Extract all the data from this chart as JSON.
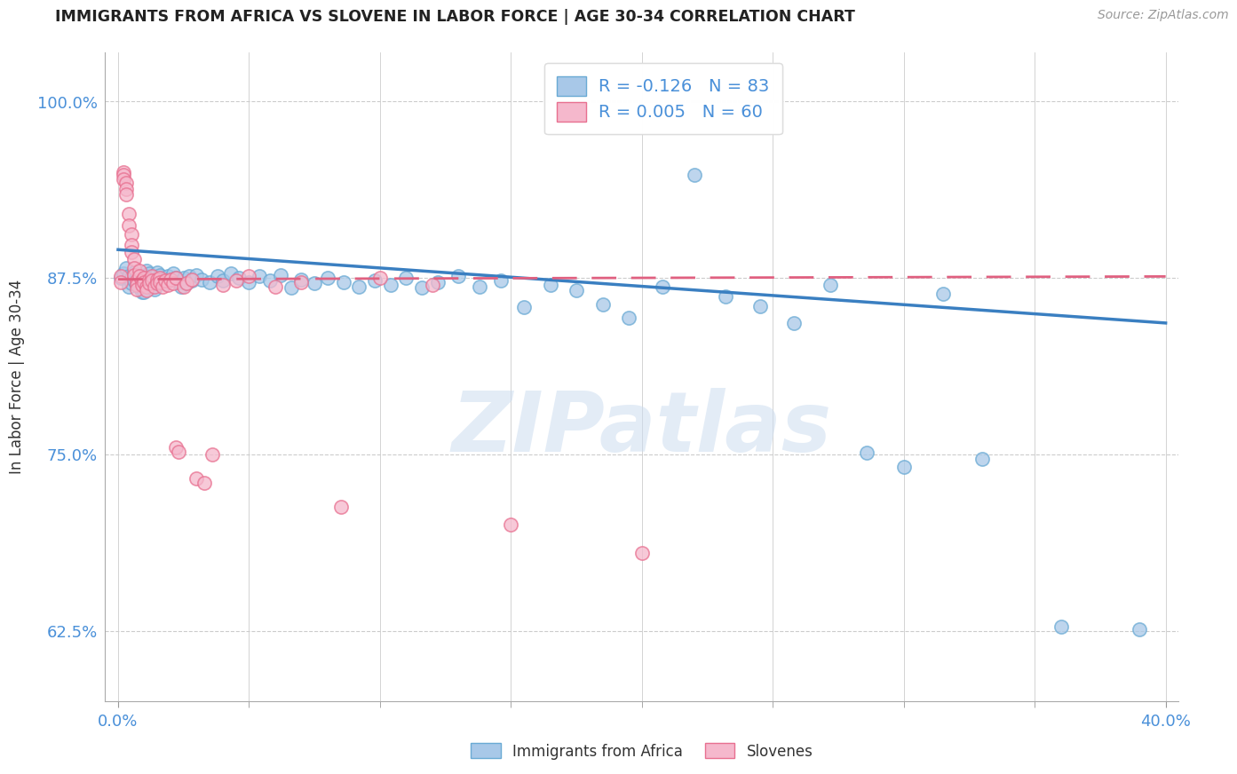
{
  "title": "IMMIGRANTS FROM AFRICA VS SLOVENE IN LABOR FORCE | AGE 30-34 CORRELATION CHART",
  "source": "Source: ZipAtlas.com",
  "ylabel": "In Labor Force | Age 30-34",
  "legend_inside_labels": [
    "R = -0.126   N = 83",
    "R = 0.005   N = 60"
  ],
  "legend_below": [
    "Immigrants from Africa",
    "Slovenes"
  ],
  "blue_color": "#a8c8e8",
  "blue_edge": "#6aaad4",
  "pink_color": "#f5b8cc",
  "pink_edge": "#e87090",
  "blue_line_color": "#3a7fc1",
  "pink_line_color": "#e06080",
  "watermark_text": "ZIPatlas",
  "blue_scatter": [
    [
      0.001,
      0.875
    ],
    [
      0.002,
      0.878
    ],
    [
      0.003,
      0.882
    ],
    [
      0.004,
      0.876
    ],
    [
      0.004,
      0.869
    ],
    [
      0.005,
      0.875
    ],
    [
      0.005,
      0.871
    ],
    [
      0.006,
      0.879
    ],
    [
      0.006,
      0.873
    ],
    [
      0.007,
      0.877
    ],
    [
      0.007,
      0.87
    ],
    [
      0.008,
      0.875
    ],
    [
      0.008,
      0.868
    ],
    [
      0.009,
      0.873
    ],
    [
      0.009,
      0.865
    ],
    [
      0.01,
      0.877
    ],
    [
      0.01,
      0.871
    ],
    [
      0.01,
      0.865
    ],
    [
      0.011,
      0.88
    ],
    [
      0.011,
      0.875
    ],
    [
      0.012,
      0.878
    ],
    [
      0.012,
      0.871
    ],
    [
      0.013,
      0.875
    ],
    [
      0.013,
      0.869
    ],
    [
      0.014,
      0.873
    ],
    [
      0.014,
      0.867
    ],
    [
      0.015,
      0.879
    ],
    [
      0.015,
      0.873
    ],
    [
      0.016,
      0.877
    ],
    [
      0.017,
      0.874
    ],
    [
      0.018,
      0.871
    ],
    [
      0.019,
      0.876
    ],
    [
      0.02,
      0.873
    ],
    [
      0.021,
      0.878
    ],
    [
      0.022,
      0.875
    ],
    [
      0.023,
      0.872
    ],
    [
      0.024,
      0.869
    ],
    [
      0.025,
      0.875
    ],
    [
      0.026,
      0.871
    ],
    [
      0.027,
      0.876
    ],
    [
      0.028,
      0.873
    ],
    [
      0.03,
      0.877
    ],
    [
      0.032,
      0.874
    ],
    [
      0.035,
      0.872
    ],
    [
      0.038,
      0.876
    ],
    [
      0.04,
      0.873
    ],
    [
      0.043,
      0.878
    ],
    [
      0.046,
      0.875
    ],
    [
      0.05,
      0.872
    ],
    [
      0.054,
      0.876
    ],
    [
      0.058,
      0.873
    ],
    [
      0.062,
      0.877
    ],
    [
      0.066,
      0.868
    ],
    [
      0.07,
      0.874
    ],
    [
      0.075,
      0.871
    ],
    [
      0.08,
      0.875
    ],
    [
      0.086,
      0.872
    ],
    [
      0.092,
      0.869
    ],
    [
      0.098,
      0.873
    ],
    [
      0.104,
      0.87
    ],
    [
      0.11,
      0.875
    ],
    [
      0.116,
      0.868
    ],
    [
      0.122,
      0.872
    ],
    [
      0.13,
      0.876
    ],
    [
      0.138,
      0.869
    ],
    [
      0.146,
      0.873
    ],
    [
      0.155,
      0.854
    ],
    [
      0.165,
      0.87
    ],
    [
      0.175,
      0.866
    ],
    [
      0.185,
      0.856
    ],
    [
      0.195,
      0.847
    ],
    [
      0.208,
      0.869
    ],
    [
      0.22,
      0.948
    ],
    [
      0.232,
      0.862
    ],
    [
      0.245,
      0.855
    ],
    [
      0.258,
      0.843
    ],
    [
      0.272,
      0.87
    ],
    [
      0.286,
      0.751
    ],
    [
      0.3,
      0.741
    ],
    [
      0.315,
      0.864
    ],
    [
      0.33,
      0.747
    ],
    [
      0.36,
      0.628
    ],
    [
      0.39,
      0.626
    ]
  ],
  "pink_scatter": [
    [
      0.001,
      0.876
    ],
    [
      0.001,
      0.872
    ],
    [
      0.002,
      0.95
    ],
    [
      0.002,
      0.948
    ],
    [
      0.002,
      0.945
    ],
    [
      0.003,
      0.942
    ],
    [
      0.003,
      0.938
    ],
    [
      0.003,
      0.934
    ],
    [
      0.004,
      0.92
    ],
    [
      0.004,
      0.912
    ],
    [
      0.005,
      0.906
    ],
    [
      0.005,
      0.898
    ],
    [
      0.005,
      0.893
    ],
    [
      0.006,
      0.888
    ],
    [
      0.006,
      0.882
    ],
    [
      0.006,
      0.877
    ],
    [
      0.007,
      0.873
    ],
    [
      0.007,
      0.87
    ],
    [
      0.007,
      0.867
    ],
    [
      0.008,
      0.88
    ],
    [
      0.008,
      0.876
    ],
    [
      0.009,
      0.873
    ],
    [
      0.009,
      0.87
    ],
    [
      0.01,
      0.875
    ],
    [
      0.01,
      0.872
    ],
    [
      0.011,
      0.869
    ],
    [
      0.011,
      0.866
    ],
    [
      0.012,
      0.874
    ],
    [
      0.012,
      0.871
    ],
    [
      0.013,
      0.876
    ],
    [
      0.013,
      0.873
    ],
    [
      0.014,
      0.869
    ],
    [
      0.015,
      0.874
    ],
    [
      0.015,
      0.871
    ],
    [
      0.016,
      0.875
    ],
    [
      0.016,
      0.872
    ],
    [
      0.017,
      0.869
    ],
    [
      0.018,
      0.873
    ],
    [
      0.019,
      0.87
    ],
    [
      0.02,
      0.874
    ],
    [
      0.021,
      0.871
    ],
    [
      0.022,
      0.875
    ],
    [
      0.022,
      0.755
    ],
    [
      0.023,
      0.752
    ],
    [
      0.025,
      0.869
    ],
    [
      0.026,
      0.871
    ],
    [
      0.028,
      0.874
    ],
    [
      0.03,
      0.733
    ],
    [
      0.033,
      0.73
    ],
    [
      0.036,
      0.75
    ],
    [
      0.04,
      0.87
    ],
    [
      0.045,
      0.873
    ],
    [
      0.05,
      0.876
    ],
    [
      0.06,
      0.869
    ],
    [
      0.07,
      0.872
    ],
    [
      0.085,
      0.713
    ],
    [
      0.1,
      0.875
    ],
    [
      0.12,
      0.87
    ],
    [
      0.15,
      0.7
    ],
    [
      0.2,
      0.68
    ]
  ],
  "blue_line": {
    "x0": 0.0,
    "y0": 0.895,
    "x1": 0.4,
    "y1": 0.843
  },
  "pink_line": {
    "x0": 0.0,
    "y0": 0.874,
    "x1": 0.4,
    "y1": 0.876
  },
  "xlim": [
    -0.005,
    0.405
  ],
  "ylim": [
    0.575,
    1.035
  ],
  "yticks": [
    0.625,
    0.75,
    0.875,
    1.0
  ],
  "ytick_labels": [
    "62.5%",
    "75.0%",
    "87.5%",
    "100.0%"
  ],
  "xticks_major": [
    0.0,
    0.4
  ],
  "xtick_labels": [
    "0.0%",
    "40.0%"
  ],
  "xticks_minor": [
    0.05,
    0.1,
    0.15,
    0.2,
    0.25,
    0.3,
    0.35
  ],
  "background_color": "#ffffff"
}
